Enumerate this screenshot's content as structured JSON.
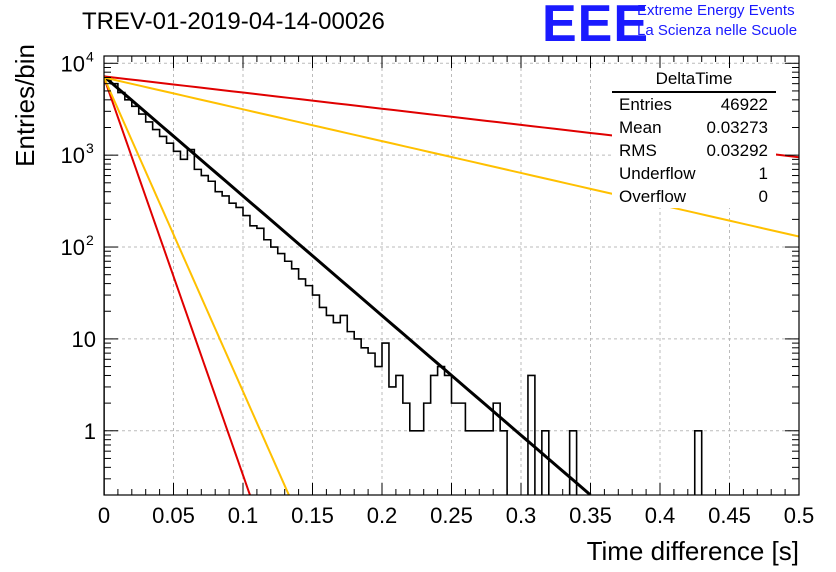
{
  "title": "TREV-01-2019-04-14-00026",
  "logo": {
    "mark": "EEE",
    "line1": "Extreme Energy Events",
    "line2": "La Scienza nelle Scuole"
  },
  "stats_box": {
    "name": "DeltaTime",
    "rows": [
      {
        "label": "Entries",
        "value": "46922"
      },
      {
        "label": "Mean",
        "value": "0.03273"
      },
      {
        "label": "RMS",
        "value": "0.03292"
      },
      {
        "label": "Underflow",
        "value": "1"
      },
      {
        "label": "Overflow",
        "value": "0"
      }
    ]
  },
  "colors": {
    "histogram": "#000000",
    "fit": "#000000",
    "red": "#e00000",
    "yellow": "#ffc000",
    "grid": "#bbbbbb"
  },
  "chart_data": {
    "type": "line",
    "xlabel": "Time difference [s]",
    "ylabel": "Entries/bin",
    "xlim": [
      0,
      0.5
    ],
    "ylim": [
      0.2,
      12000
    ],
    "yscale": "log",
    "grid": true,
    "x_ticks": [
      {
        "v": 0,
        "label": "0"
      },
      {
        "v": 0.05,
        "label": "0.05"
      },
      {
        "v": 0.1,
        "label": "0.1"
      },
      {
        "v": 0.15,
        "label": "0.15"
      },
      {
        "v": 0.2,
        "label": "0.2"
      },
      {
        "v": 0.25,
        "label": "0.25"
      },
      {
        "v": 0.3,
        "label": "0.3"
      },
      {
        "v": 0.35,
        "label": "0.35"
      },
      {
        "v": 0.4,
        "label": "0.4"
      },
      {
        "v": 0.45,
        "label": "0.45"
      },
      {
        "v": 0.5,
        "label": "0.5"
      }
    ],
    "y_ticks": [
      {
        "v": 1,
        "label": "1"
      },
      {
        "v": 10,
        "label": "10"
      },
      {
        "v": 100,
        "label": "10",
        "sup": "2"
      },
      {
        "v": 1000,
        "label": "10",
        "sup": "3"
      },
      {
        "v": 10000,
        "label": "10",
        "sup": "4"
      }
    ],
    "histogram": {
      "bin_width": 0.005,
      "x_start": 0,
      "counts": [
        7000,
        6000,
        4800,
        4000,
        3400,
        2800,
        2300,
        1900,
        1600,
        1350,
        1100,
        900,
        1150,
        700,
        600,
        520,
        400,
        360,
        300,
        270,
        220,
        170,
        160,
        120,
        100,
        85,
        70,
        58,
        45,
        38,
        30,
        22,
        18,
        15,
        18,
        12,
        10,
        8,
        7,
        5,
        9,
        3,
        4,
        2,
        1,
        1,
        2,
        4,
        5,
        4,
        2,
        2,
        1,
        1,
        1,
        1,
        2,
        1,
        0,
        0,
        0,
        4,
        0,
        1,
        0,
        0,
        0,
        1,
        0,
        0,
        0,
        0,
        0,
        0,
        0,
        0,
        0,
        0,
        0,
        0,
        0,
        0,
        0,
        0,
        0,
        1,
        0,
        0,
        0,
        0,
        0,
        0,
        0,
        0,
        0,
        0,
        0,
        0,
        0,
        0
      ]
    },
    "series": [
      {
        "name": "",
        "style": "fit",
        "type": "exponential",
        "x": [
          0,
          0.35
        ],
        "y": [
          7200,
          0.2
        ]
      },
      {
        "name": "",
        "style": "red",
        "type": "exponential",
        "x": [
          0,
          0.5
        ],
        "y": [
          7200,
          950
        ]
      },
      {
        "name": "",
        "style": "yellow",
        "type": "exponential",
        "x": [
          0,
          0.5
        ],
        "y": [
          7000,
          130
        ]
      },
      {
        "name": "",
        "style": "red",
        "type": "exponential",
        "x": [
          0,
          0.105
        ],
        "y": [
          7000,
          0.2
        ]
      },
      {
        "name": "",
        "style": "yellow",
        "type": "exponential",
        "x": [
          0,
          0.133
        ],
        "y": [
          7000,
          0.2
        ]
      }
    ]
  }
}
